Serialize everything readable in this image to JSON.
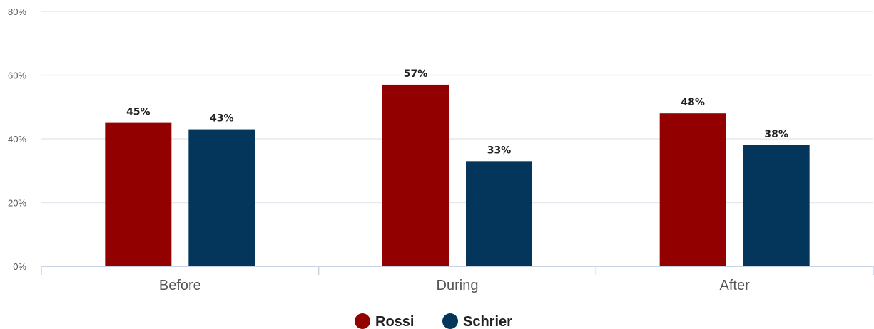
{
  "chart_data": {
    "type": "bar",
    "title": "",
    "xlabel": "",
    "ylabel": "",
    "categories": [
      "Before",
      "During",
      "After"
    ],
    "series": [
      {
        "name": "Rossi",
        "values": [
          45,
          57,
          48
        ],
        "labels": [
          "45%",
          "57%",
          "48%"
        ],
        "color": "#930000"
      },
      {
        "name": "Schrier",
        "values": [
          43,
          33,
          38
        ],
        "labels": [
          "43%",
          "33%",
          "38%"
        ],
        "color": "#04365c"
      }
    ],
    "ylim": [
      0,
      80
    ],
    "yticks": [
      0,
      20,
      40,
      60,
      80
    ],
    "ytick_labels": [
      "0%",
      "20%",
      "40%",
      "60%",
      "80%"
    ],
    "grid": true,
    "legend": "bottom-center",
    "colors": {
      "grid": "#e6e9ef",
      "axis": "#c9d3e3",
      "tick_text": "#555555",
      "label_text": "#222222"
    }
  }
}
